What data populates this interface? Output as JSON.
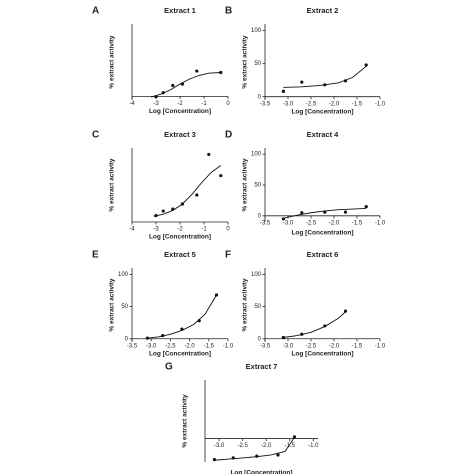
{
  "chart_data": [
    {
      "type": "scatter",
      "letter": "A",
      "title": "Extract 1",
      "xlabel": "Log [Concentration]",
      "ylabel": "% extract activity",
      "xlim": [
        -4,
        0
      ],
      "xticks": [
        -4,
        -3,
        -2,
        -1,
        0
      ],
      "ylim": [
        -5,
        100
      ],
      "series": [
        {
          "x": [
            -3,
            -2.7,
            -2.3,
            -1.9,
            -1.3,
            -0.3
          ],
          "values": [
            -0.5,
            5,
            15,
            17,
            35,
            33
          ],
          "color": "#111",
          "style": "points"
        },
        {
          "x": [
            -3.2,
            -2.8,
            -2.4,
            -2.0,
            -1.6,
            -1.2,
            -0.8,
            -0.3
          ],
          "values": [
            -1,
            3,
            9,
            17,
            24,
            29,
            32,
            33
          ],
          "color": "#111",
          "style": "line"
        }
      ]
    },
    {
      "type": "scatter",
      "letter": "B",
      "title": "Extract 2",
      "xlabel": "Log [Concentration]",
      "ylabel": "% extract activity",
      "xlim": [
        -3.5,
        -1
      ],
      "xticks": [
        {
          "value": -3.5,
          "label": "-3.5"
        },
        {
          "value": -3,
          "label": "-3.0"
        },
        {
          "value": -2.5,
          "label": "-2.5"
        },
        {
          "value": -2,
          "label": "-2.0"
        },
        {
          "value": -1.5,
          "label": "-1.5"
        },
        {
          "value": -1,
          "label": "-1.0"
        }
      ],
      "ylim": [
        -5,
        110
      ],
      "yticks": [
        0,
        50,
        100
      ],
      "series": [
        {
          "x": [
            -3.1,
            -2.7,
            -2.2,
            -1.75,
            -1.3
          ],
          "values": [
            8,
            22,
            18,
            24,
            48
          ],
          "color": "#111",
          "style": "points"
        },
        {
          "x": [
            -3.1,
            -2.7,
            -2.3,
            -1.9,
            -1.6,
            -1.3
          ],
          "values": [
            14,
            15,
            17,
            21,
            29,
            46
          ],
          "color": "#111",
          "style": "line"
        }
      ]
    },
    {
      "type": "scatter",
      "letter": "C",
      "title": "Extract 3",
      "xlabel": "Log [Concentration]",
      "ylabel": "% extract activity",
      "xlim": [
        -4,
        0
      ],
      "xticks": [
        -4,
        -3,
        -2,
        -1,
        0
      ],
      "ylim": [
        0,
        115
      ],
      "series": [
        {
          "x": [
            -3,
            -2.7,
            -2.3,
            -1.9,
            -1.3,
            -0.8,
            -0.3
          ],
          "values": [
            10,
            17,
            20,
            28,
            42,
            105,
            72
          ],
          "color": "#111",
          "style": "points"
        },
        {
          "x": [
            -3.1,
            -2.7,
            -2.3,
            -1.9,
            -1.5,
            -1.1,
            -0.7,
            -0.3
          ],
          "values": [
            9,
            12,
            18,
            28,
            43,
            61,
            77,
            88
          ],
          "color": "#111",
          "style": "line"
        }
      ]
    },
    {
      "type": "scatter",
      "letter": "D",
      "title": "Extract 4",
      "xlabel": "Log [Concentration]",
      "ylabel": "% extract activity",
      "xlim": [
        -3.5,
        -1
      ],
      "xticks": [
        {
          "value": -3.5,
          "label": "-3.5"
        },
        {
          "value": -3,
          "label": "-3.0"
        },
        {
          "value": -2.5,
          "label": "-2.5"
        },
        {
          "value": -2,
          "label": "-2.0"
        },
        {
          "value": -1.5,
          "label": "-1.5"
        },
        {
          "value": -1,
          "label": "-1.0"
        }
      ],
      "ylim": [
        -10,
        110
      ],
      "yticks": [
        0,
        50,
        100
      ],
      "series": [
        {
          "x": [
            -3.1,
            -2.7,
            -2.2,
            -1.75,
            -1.3
          ],
          "values": [
            -5,
            5,
            6,
            6,
            15
          ],
          "color": "#111",
          "style": "points"
        },
        {
          "x": [
            -3.1,
            -2.8,
            -2.5,
            -2.2,
            -1.9,
            -1.6,
            -1.3
          ],
          "values": [
            -4,
            1,
            5,
            8,
            10,
            11,
            12
          ],
          "color": "#111",
          "style": "line"
        }
      ]
    },
    {
      "type": "scatter",
      "letter": "E",
      "title": "Extract 5",
      "xlabel": "Log [Concentration]",
      "ylabel": "% extract activity",
      "xlim": [
        -3.5,
        -1
      ],
      "xticks": [
        {
          "value": -3.5,
          "label": "-3.5"
        },
        {
          "value": -3,
          "label": "-3.0"
        },
        {
          "value": -2.5,
          "label": "-2.5"
        },
        {
          "value": -2,
          "label": "-2.0"
        },
        {
          "value": -1.5,
          "label": "-1.5"
        },
        {
          "value": -1,
          "label": "-1.0"
        }
      ],
      "ylim": [
        -5,
        110
      ],
      "yticks": [
        0,
        50,
        100
      ],
      "series": [
        {
          "x": [
            -3.1,
            -2.7,
            -2.2,
            -1.75,
            -1.3
          ],
          "values": [
            1,
            5,
            15,
            28,
            68
          ],
          "color": "#111",
          "style": "points"
        },
        {
          "x": [
            -3.1,
            -2.8,
            -2.5,
            -2.2,
            -1.9,
            -1.6,
            -1.3
          ],
          "values": [
            1,
            3,
            7,
            13,
            22,
            38,
            68
          ],
          "color": "#111",
          "style": "line"
        }
      ]
    },
    {
      "type": "scatter",
      "letter": "F",
      "title": "Extract 6",
      "xlabel": "Log [Concentration]",
      "ylabel": "% extract activity",
      "xlim": [
        -3.5,
        -1
      ],
      "xticks": [
        {
          "value": -3.5,
          "label": "-3.5"
        },
        {
          "value": -3,
          "label": "-3.0"
        },
        {
          "value": -2.5,
          "label": "-2.5"
        },
        {
          "value": -2,
          "label": "-2.0"
        },
        {
          "value": -1.5,
          "label": "-1.5"
        },
        {
          "value": -1,
          "label": "-1.0"
        }
      ],
      "ylim": [
        -5,
        110
      ],
      "yticks": [
        0,
        50,
        100
      ],
      "series": [
        {
          "x": [
            -3.1,
            -2.7,
            -2.2,
            -1.75
          ],
          "values": [
            2,
            7,
            20,
            43
          ],
          "color": "#111",
          "style": "points"
        },
        {
          "x": [
            -3.1,
            -2.8,
            -2.5,
            -2.2,
            -1.9,
            -1.75
          ],
          "values": [
            2,
            5,
            10,
            19,
            32,
            42
          ],
          "color": "#111",
          "style": "line"
        }
      ]
    },
    {
      "type": "scatter",
      "letter": "G",
      "title": "Extract 7",
      "xlabel": "Log [Concentration]",
      "ylabel": "% extract activity",
      "xlim": [
        -3.3,
        -0.9
      ],
      "xticks": [
        {
          "value": -3,
          "label": "-3.0"
        },
        {
          "value": -2.5,
          "label": "-2.5"
        },
        {
          "value": -2,
          "label": "-2.0"
        },
        {
          "value": -1.5,
          "label": "-1.5"
        },
        {
          "value": -1,
          "label": "-1.0"
        }
      ],
      "ylim": [
        -40,
        100
      ],
      "series": [
        {
          "x": [
            -3.1,
            -2.7,
            -2.2,
            -1.75,
            -1.4
          ],
          "values": [
            -36,
            -33,
            -30,
            -28,
            3
          ],
          "color": "#111",
          "style": "points"
        },
        {
          "x": [
            -3.1,
            -2.8,
            -2.5,
            -2.2,
            -1.9,
            -1.6,
            -1.4
          ],
          "values": [
            -37,
            -35,
            -33,
            -31,
            -28,
            -22,
            2
          ],
          "color": "#111",
          "style": "line"
        }
      ]
    }
  ]
}
